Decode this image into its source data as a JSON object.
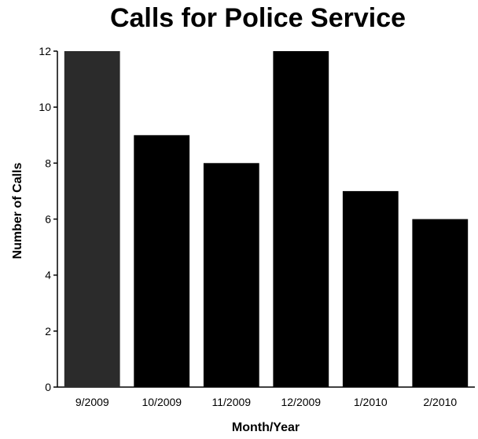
{
  "chart_data": {
    "type": "bar",
    "title": "Calls for Police Service",
    "xlabel": "Month/Year",
    "ylabel": "Number of Calls",
    "categories": [
      "9/2009",
      "10/2009",
      "11/2009",
      "12/2009",
      "1/2010",
      "2/2010"
    ],
    "values": [
      12,
      9,
      8,
      12,
      7,
      6
    ],
    "ylim": [
      0,
      12
    ],
    "yticks": [
      "0",
      "2",
      "4",
      "6",
      "8",
      "10",
      "12"
    ],
    "grid": false,
    "legend": "none",
    "colors": {
      "bar": "#000000",
      "highlight_bar": "#2b2b2b",
      "axis": "#000000"
    },
    "highlight_index": 0
  }
}
